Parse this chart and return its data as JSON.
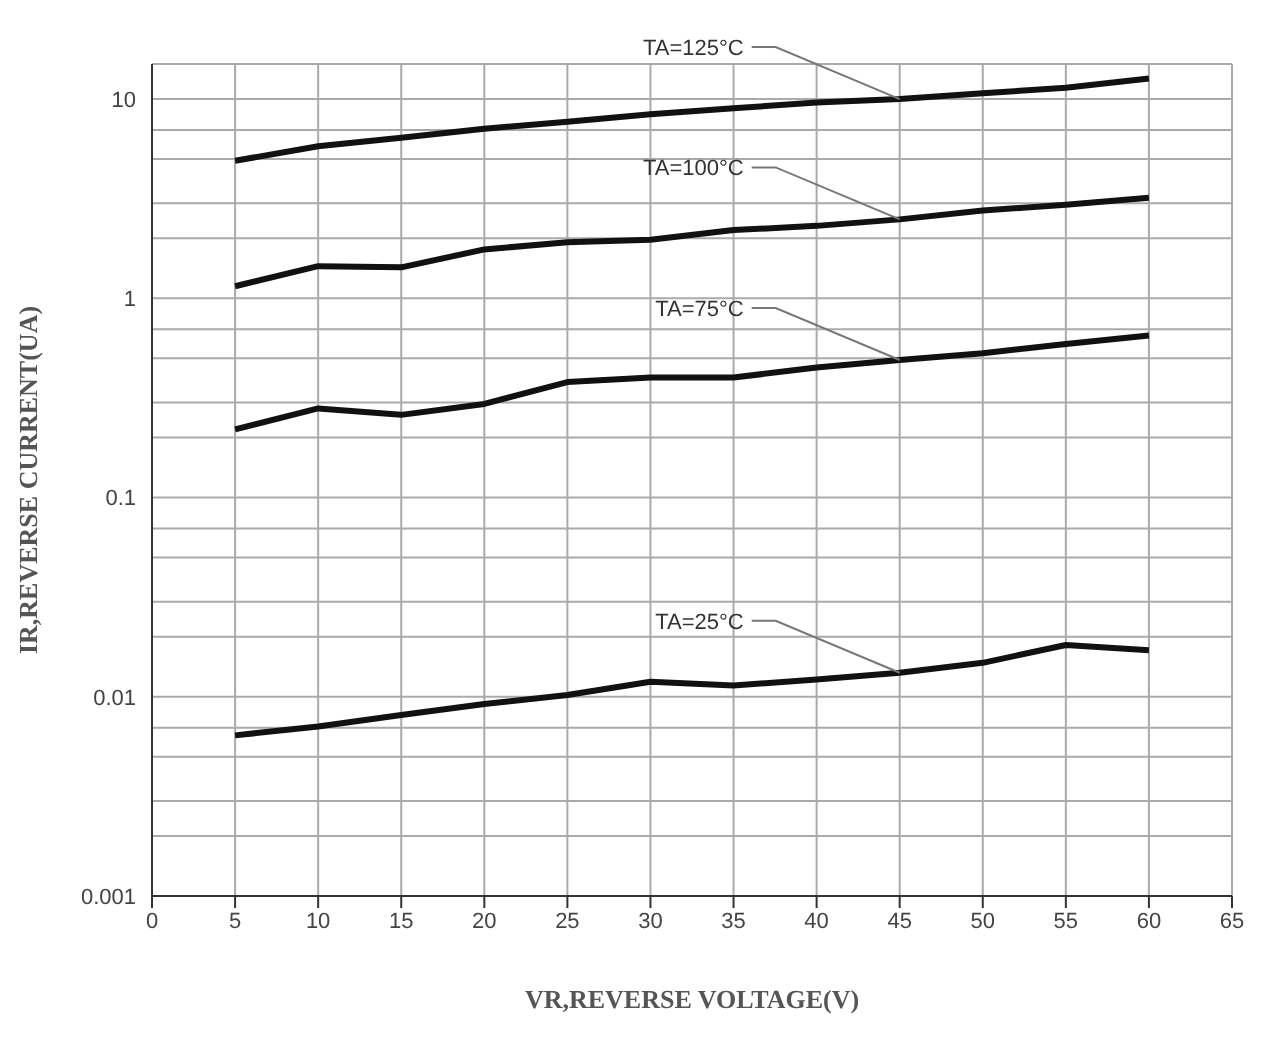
{
  "chart_data": {
    "type": "line",
    "xlabel": "VR,REVERSE VOLTAGE(V)",
    "ylabel": "IR,REVERSE CURRENT(UA)",
    "x": [
      5,
      10,
      15,
      20,
      25,
      30,
      35,
      40,
      45,
      50,
      55,
      60
    ],
    "series": [
      {
        "name": "TA=125°C",
        "color": "#111111",
        "values": [
          4.9,
          5.8,
          6.4,
          7.1,
          7.7,
          8.4,
          9.0,
          9.6,
          10,
          10.7,
          11.4,
          12.7
        ]
      },
      {
        "name": "TA=100°C",
        "color": "#111111",
        "values": [
          1.15,
          1.45,
          1.43,
          1.76,
          1.91,
          1.97,
          2.2,
          2.31,
          2.49,
          2.76,
          2.95,
          3.2
        ]
      },
      {
        "name": "TA=75°C",
        "color": "#111111",
        "values": [
          0.22,
          0.28,
          0.26,
          0.295,
          0.38,
          0.4,
          0.4,
          0.45,
          0.49,
          0.53,
          0.59,
          0.65
        ]
      },
      {
        "name": "TA=25°C",
        "color": "#111111",
        "values": [
          0.0064,
          0.0071,
          0.0081,
          0.0092,
          0.0102,
          0.0119,
          0.0114,
          0.0122,
          0.0132,
          0.0148,
          0.0182,
          0.0171
        ]
      }
    ],
    "xlim": [
      0,
      65
    ],
    "xticks": [
      0,
      5,
      10,
      15,
      20,
      25,
      30,
      35,
      40,
      45,
      50,
      55,
      60,
      65
    ],
    "log": "y",
    "ylim": [
      0.001,
      15
    ],
    "yticks": [
      0.001,
      {
        "value": 0.002,
        "label": null
      },
      {
        "value": 0.003,
        "label": null
      },
      {
        "value": 0.005,
        "label": null
      },
      {
        "value": 0.007,
        "label": null
      },
      0.01,
      {
        "value": 0.02,
        "label": null
      },
      {
        "value": 0.03,
        "label": null
      },
      {
        "value": 0.05,
        "label": null
      },
      {
        "value": 0.07,
        "label": null
      },
      0.1,
      {
        "value": 0.2,
        "label": null
      },
      {
        "value": 0.3,
        "label": null
      },
      {
        "value": 0.5,
        "label": null
      },
      {
        "value": 0.7,
        "label": null
      },
      1,
      {
        "value": 2,
        "label": null
      },
      {
        "value": 3,
        "label": null
      },
      {
        "value": 5,
        "label": null
      },
      {
        "value": 7,
        "label": null
      },
      10
    ],
    "grid": true,
    "legend": false,
    "marker": "none",
    "line_style": "solid"
  }
}
